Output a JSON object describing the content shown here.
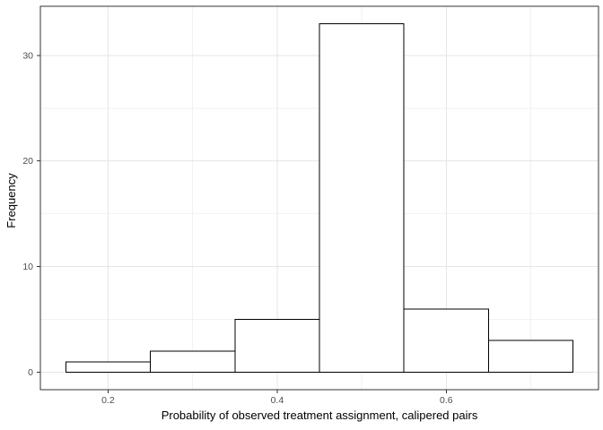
{
  "chart_data": {
    "type": "bar",
    "subtype": "histogram",
    "title": "",
    "xlabel": "Probability of observed treatment assignment, calipered pairs",
    "ylabel": "Frequency",
    "bin_width": 0.1,
    "bin_edges": [
      0.15,
      0.25,
      0.35,
      0.45,
      0.55,
      0.65,
      0.75
    ],
    "frequencies": [
      1,
      2,
      5,
      33,
      6,
      3
    ],
    "x_ticks": [
      0.2,
      0.4,
      0.6
    ],
    "x_tick_labels": [
      "0.2",
      "0.4",
      "0.6"
    ],
    "x_minor_gridlines": [
      0.3,
      0.5,
      0.7
    ],
    "y_ticks": [
      0,
      10,
      20,
      30
    ],
    "y_tick_labels": [
      "0",
      "10",
      "20",
      "30"
    ],
    "y_minor_gridlines": [
      5,
      15,
      25
    ],
    "xlim": [
      0.12,
      0.78
    ],
    "ylim": [
      -1.65,
      34.65
    ],
    "grid": "major-and-minor",
    "legend": "none",
    "colors": {
      "background": "#ffffff",
      "panel_background": "#ffffff",
      "bar_fill": "#ffffff",
      "bar_stroke": "#000000",
      "panel_border": "#333333",
      "grid_major": "#e6e6e6",
      "grid_minor": "#f2f2f2",
      "tick_mark": "#333333",
      "tick_label": "#4d4d4d",
      "axis_title": "#000000"
    }
  }
}
